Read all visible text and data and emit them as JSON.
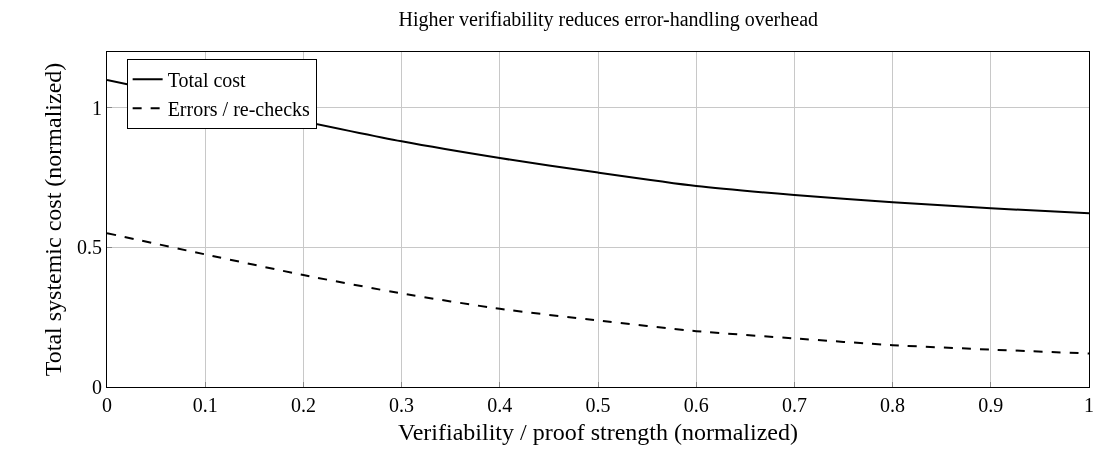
{
  "chart_data": {
    "type": "line",
    "title": "Higher verifiability reduces error-handling overhead",
    "xlabel": "Verifiability / proof strength (normalized)",
    "ylabel": "Total systemic cost (normalized)",
    "x": [
      0,
      0.1,
      0.2,
      0.3,
      0.4,
      0.5,
      0.6,
      0.7,
      0.8,
      0.9,
      1
    ],
    "series": [
      {
        "name": "Total cost",
        "color": "#000000",
        "line_style": "solid",
        "values": [
          1.1,
          null,
          null,
          0.88,
          0.82,
          0.768,
          0.72,
          0.688,
          0.662,
          0.64,
          0.622
        ]
      },
      {
        "name": "Errors / re-checks",
        "color": "#000000",
        "line_style": "dashed",
        "values": [
          0.551,
          0.475,
          0.401,
          0.335,
          0.28,
          0.238,
          0.2,
          0.174,
          0.15,
          0.134,
          0.12
        ]
      }
    ],
    "xlim": [
      0,
      1
    ],
    "xticks": [
      0,
      0.1,
      0.2,
      0.3,
      0.4,
      0.5,
      0.6,
      0.7,
      0.8,
      0.9,
      1
    ],
    "ylim": [
      0,
      1.2
    ],
    "yticks": [
      0,
      0.5,
      1
    ],
    "grid": true,
    "legend": "top left",
    "marker": "none"
  }
}
